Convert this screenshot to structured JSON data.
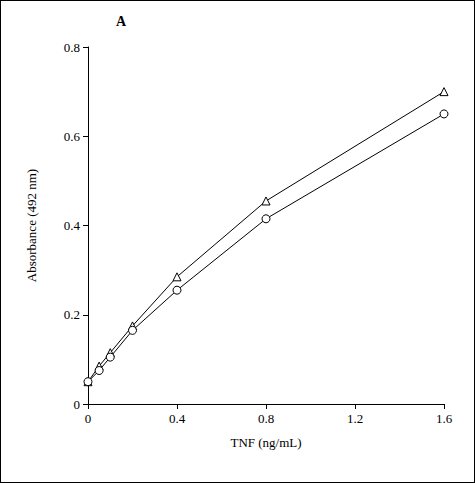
{
  "chart_data": {
    "type": "line",
    "title": "A",
    "x_label": "TNF (ng/mL)",
    "y_label": "Absorbance (492 nm)",
    "x": [
      0,
      0.05,
      0.1,
      0.2,
      0.4,
      0.8,
      1.6
    ],
    "series": [
      {
        "color": "#000000",
        "marker": "triangle",
        "line_style": "solid",
        "values": [
          0.05,
          0.085,
          0.115,
          0.175,
          0.285,
          0.455,
          0.7
        ]
      },
      {
        "color": "#000000",
        "marker": "circle",
        "line_style": "solid",
        "values": [
          0.05,
          0.075,
          0.105,
          0.165,
          0.255,
          0.415,
          0.65
        ]
      }
    ],
    "xlim": [
      0,
      1.6
    ],
    "xticks": [
      0,
      0.4,
      0.8,
      1.2,
      1.6
    ],
    "ylim": [
      0,
      0.8
    ],
    "yticks": [
      0,
      0.2,
      0.4,
      0.6,
      0.8
    ],
    "grid": false
  }
}
